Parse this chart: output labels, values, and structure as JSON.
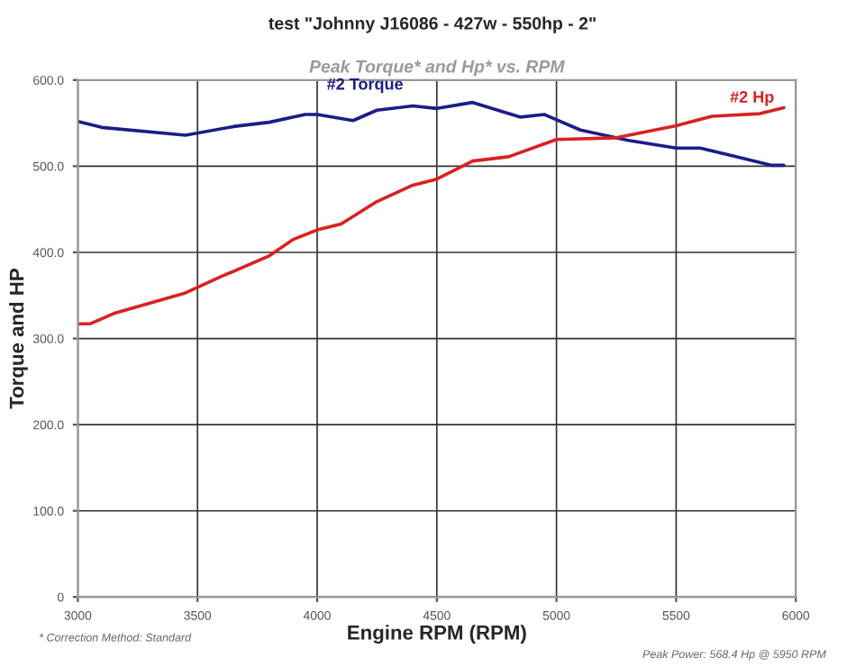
{
  "chart_data": {
    "type": "line",
    "title": "test \"Johnny J16086 - 427w - 550hp - 2\"",
    "subtitle": "Peak Torque* and Hp* vs. RPM",
    "xlabel": "Engine RPM (RPM)",
    "ylabel": "Torque and HP",
    "series": [
      {
        "name": "#2 Torque",
        "color": "#1c1c8a",
        "x": [
          3000,
          3100,
          3450,
          3650,
          3800,
          3950,
          4000,
          4150,
          4250,
          4400,
          4500,
          4650,
          4850,
          4950,
          5100,
          5300,
          5500,
          5600,
          5750,
          5900,
          5950
        ],
        "values": [
          552,
          545,
          536,
          546,
          551,
          560,
          560,
          553,
          565,
          570,
          567,
          574,
          557,
          560,
          542,
          530,
          521,
          521,
          511,
          501,
          501
        ]
      },
      {
        "name": "#2 Hp",
        "color": "#d92121",
        "x": [
          3000,
          3050,
          3150,
          3450,
          3600,
          3800,
          3900,
          4000,
          4100,
          4250,
          4400,
          4500,
          4650,
          4800,
          5000,
          5250,
          5500,
          5650,
          5850,
          5950
        ],
        "values": [
          317,
          317,
          329,
          353,
          372,
          396,
          415,
          426,
          433,
          459,
          478,
          485,
          506,
          511,
          531,
          533,
          547,
          558,
          561,
          568
        ]
      }
    ],
    "xlim": [
      3000,
      6000
    ],
    "xticks": [
      3000,
      3500,
      4000,
      4500,
      5000,
      5500,
      6000
    ],
    "ylim": [
      0,
      600
    ],
    "yticks": [
      {
        "value": 0,
        "label": "0"
      },
      {
        "value": 100,
        "label": "100.0"
      },
      {
        "value": 200,
        "label": "200.0"
      },
      {
        "value": 300,
        "label": "300.0"
      },
      {
        "value": 400,
        "label": "400.0"
      },
      {
        "value": 500,
        "label": "500.0"
      },
      {
        "value": 600,
        "label": "600.0"
      }
    ],
    "grid": true,
    "annotations": [
      "* Correction Method: Standard",
      "Peak Power: 568.4 Hp @ 5950 RPM"
    ]
  }
}
